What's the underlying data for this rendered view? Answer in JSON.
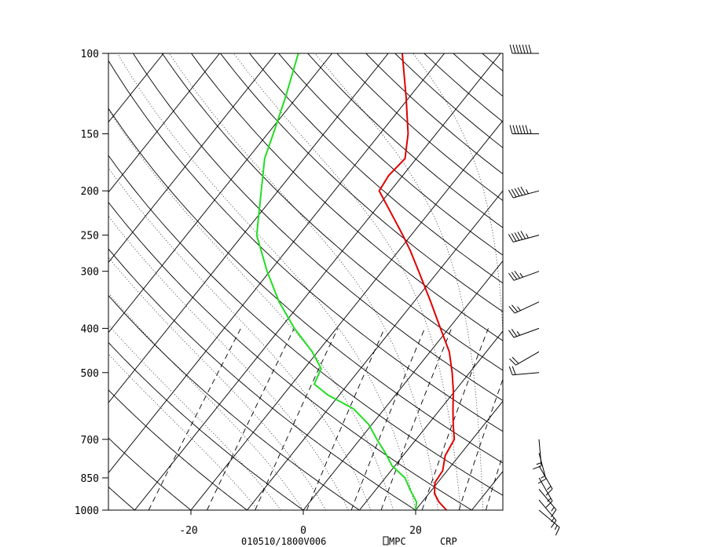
{
  "chart_data": {
    "type": "line",
    "subtype": "skew-t log-p sounding",
    "title": "",
    "xlabel": "",
    "ylabel": "",
    "footer": {
      "time": "010510/1800V006",
      "source": "MPC",
      "station": "CRP"
    },
    "pressure_ticks": [
      100,
      150,
      200,
      250,
      300,
      400,
      500,
      700,
      850,
      1000
    ],
    "temperature_ticks": [
      -20,
      0,
      20
    ],
    "xlim": [
      -34,
      35
    ],
    "ylim": [
      1000,
      100
    ],
    "log_pressure": true,
    "series": [
      {
        "name": "",
        "color": "#e00000",
        "points": [
          {
            "p": 1000,
            "t": 25.5
          },
          {
            "p": 960,
            "t": 23.0
          },
          {
            "p": 920,
            "t": 21.0
          },
          {
            "p": 870,
            "t": 19.5
          },
          {
            "p": 820,
            "t": 19.2
          },
          {
            "p": 760,
            "t": 17.5
          },
          {
            "p": 700,
            "t": 16.8
          },
          {
            "p": 650,
            "t": 14.5
          },
          {
            "p": 600,
            "t": 12.2
          },
          {
            "p": 550,
            "t": 9.8
          },
          {
            "p": 500,
            "t": 6.9
          },
          {
            "p": 450,
            "t": 3.4
          },
          {
            "p": 400,
            "t": -1.5
          },
          {
            "p": 350,
            "t": -7.0
          },
          {
            "p": 300,
            "t": -13.5
          },
          {
            "p": 270,
            "t": -18.0
          },
          {
            "p": 250,
            "t": -21.5
          },
          {
            "p": 220,
            "t": -27.5
          },
          {
            "p": 200,
            "t": -32.0
          },
          {
            "p": 185,
            "t": -32.5
          },
          {
            "p": 170,
            "t": -32.0
          },
          {
            "p": 150,
            "t": -35.0
          },
          {
            "p": 125,
            "t": -40.5
          },
          {
            "p": 100,
            "t": -47.5
          }
        ]
      },
      {
        "name": "",
        "color": "#22dd22",
        "points": [
          {
            "p": 1000,
            "t": 20.0
          },
          {
            "p": 960,
            "t": 19.0
          },
          {
            "p": 900,
            "t": 16.0
          },
          {
            "p": 850,
            "t": 13.5
          },
          {
            "p": 800,
            "t": 9.5
          },
          {
            "p": 750,
            "t": 6.5
          },
          {
            "p": 700,
            "t": 3.0
          },
          {
            "p": 650,
            "t": -0.5
          },
          {
            "p": 600,
            "t": -5.5
          },
          {
            "p": 560,
            "t": -12.0
          },
          {
            "p": 530,
            "t": -16.0
          },
          {
            "p": 490,
            "t": -17.0
          },
          {
            "p": 450,
            "t": -21.0
          },
          {
            "p": 400,
            "t": -27.5
          },
          {
            "p": 350,
            "t": -34.0
          },
          {
            "p": 300,
            "t": -40.5
          },
          {
            "p": 250,
            "t": -47.5
          },
          {
            "p": 200,
            "t": -53.0
          },
          {
            "p": 170,
            "t": -57.0
          },
          {
            "p": 150,
            "t": -59.0
          },
          {
            "p": 125,
            "t": -62.0
          },
          {
            "p": 100,
            "t": -66.0
          }
        ]
      }
    ],
    "wind_barbs": [
      {
        "p": 100,
        "dir": 270,
        "speed_kt": 70
      },
      {
        "p": 150,
        "dir": 270,
        "speed_kt": 65
      },
      {
        "p": 200,
        "dir": 255,
        "speed_kt": 55
      },
      {
        "p": 250,
        "dir": 255,
        "speed_kt": 55
      },
      {
        "p": 300,
        "dir": 250,
        "speed_kt": 35
      },
      {
        "p": 350,
        "dir": 245,
        "speed_kt": 25
      },
      {
        "p": 400,
        "dir": 250,
        "speed_kt": 25
      },
      {
        "p": 450,
        "dir": 240,
        "speed_kt": 20
      },
      {
        "p": 500,
        "dir": 265,
        "speed_kt": 20
      },
      {
        "p": 700,
        "dir": 175,
        "speed_kt": 15
      },
      {
        "p": 750,
        "dir": 165,
        "speed_kt": 15
      },
      {
        "p": 800,
        "dir": 150,
        "speed_kt": 15
      },
      {
        "p": 850,
        "dir": 150,
        "speed_kt": 15
      },
      {
        "p": 900,
        "dir": 140,
        "speed_kt": 15
      },
      {
        "p": 950,
        "dir": 140,
        "speed_kt": 15
      },
      {
        "p": 1000,
        "dir": 130,
        "speed_kt": 15
      }
    ]
  }
}
